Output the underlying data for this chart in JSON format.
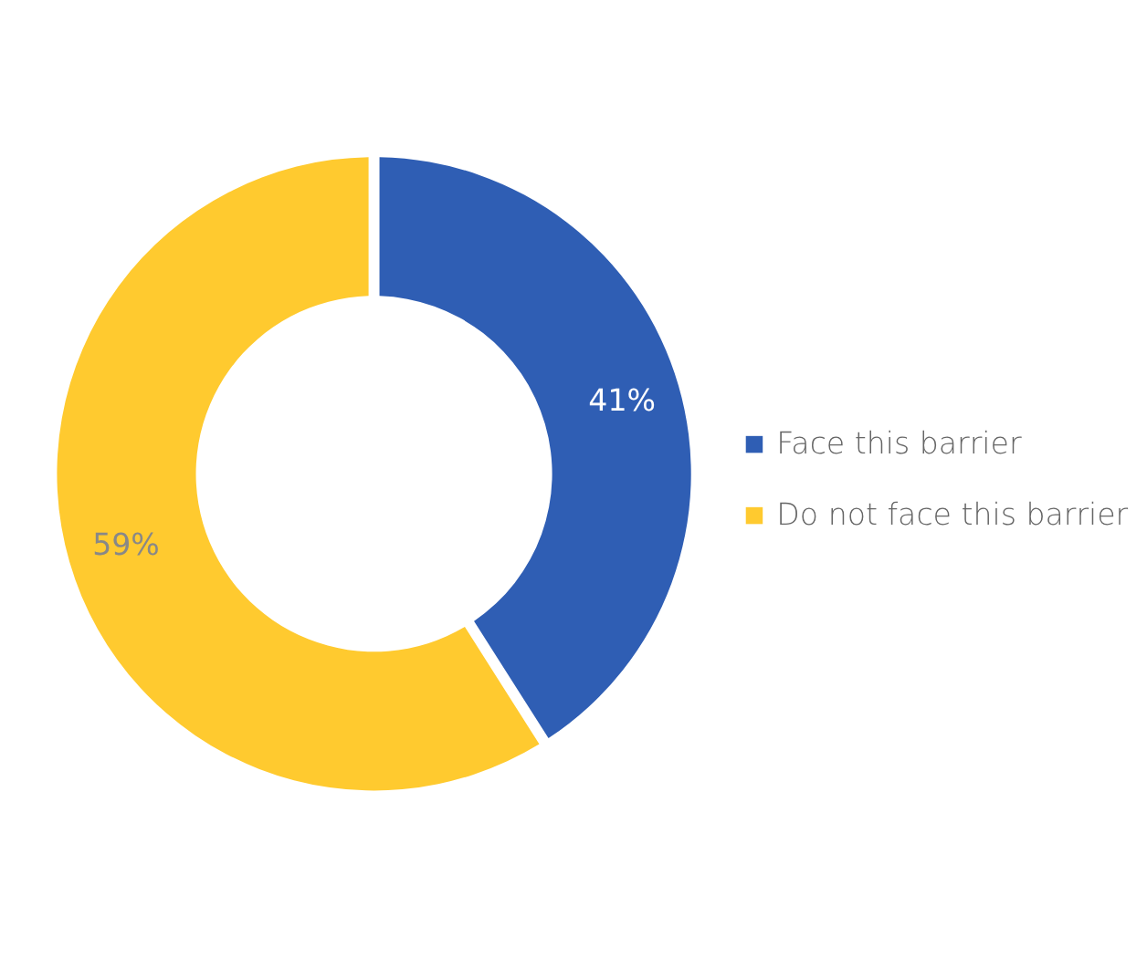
{
  "chart_data": {
    "type": "donut",
    "categories": [
      "Face this barrier",
      "Do not face this barrier"
    ],
    "values": [
      41,
      59
    ],
    "colors": [
      "#2f5eb4",
      "#ffca2f"
    ],
    "value_labels": [
      "41%",
      "59%"
    ],
    "legend": "right"
  }
}
